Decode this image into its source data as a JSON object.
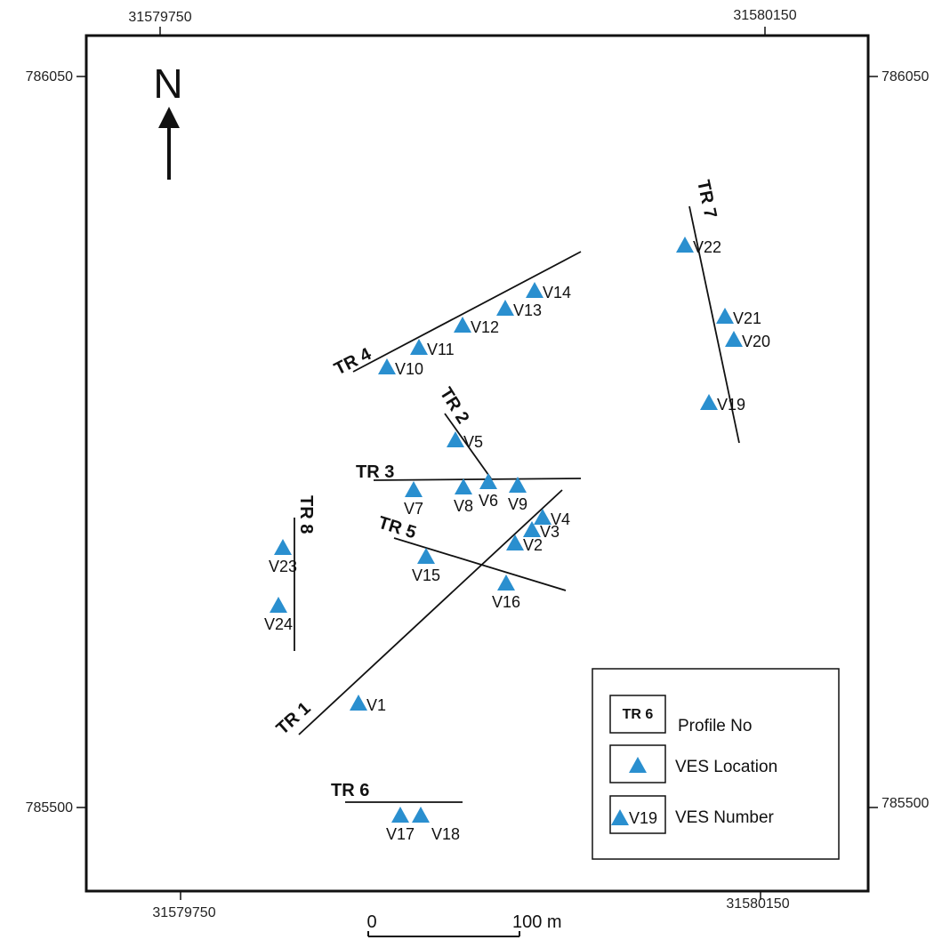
{
  "coords": {
    "top_left": "31579750",
    "top_right": "31580150",
    "bottom_left": "31579750",
    "bottom_right": "31580150",
    "left_top": "786050",
    "left_bottom": "785500",
    "right_top": "786050",
    "right_bottom": "785500"
  },
  "north_label": "N",
  "colors": {
    "marker": "#2a8fcf",
    "line": "#111111",
    "frame": "#111111"
  },
  "profiles": [
    {
      "label": "TR 1"
    },
    {
      "label": "TR 2"
    },
    {
      "label": "TR 3"
    },
    {
      "label": "TR 4"
    },
    {
      "label": "TR 5"
    },
    {
      "label": "TR 6"
    },
    {
      "label": "TR 7"
    },
    {
      "label": "TR 8"
    }
  ],
  "ves": [
    "V1",
    "V2",
    "V3",
    "V4",
    "V5",
    "V6",
    "V7",
    "V8",
    "V9",
    "V10",
    "V11",
    "V12",
    "V13",
    "V14",
    "V15",
    "V16",
    "V17",
    "V18",
    "V19",
    "V20",
    "V21",
    "V22",
    "V23",
    "V24"
  ],
  "legend": {
    "profile_box": "TR 6",
    "profile_text": "Profile No",
    "location_text": "VES Location",
    "number_box": "V19",
    "number_text": "VES Number"
  },
  "scale": {
    "start": "0",
    "end": "100 m"
  }
}
